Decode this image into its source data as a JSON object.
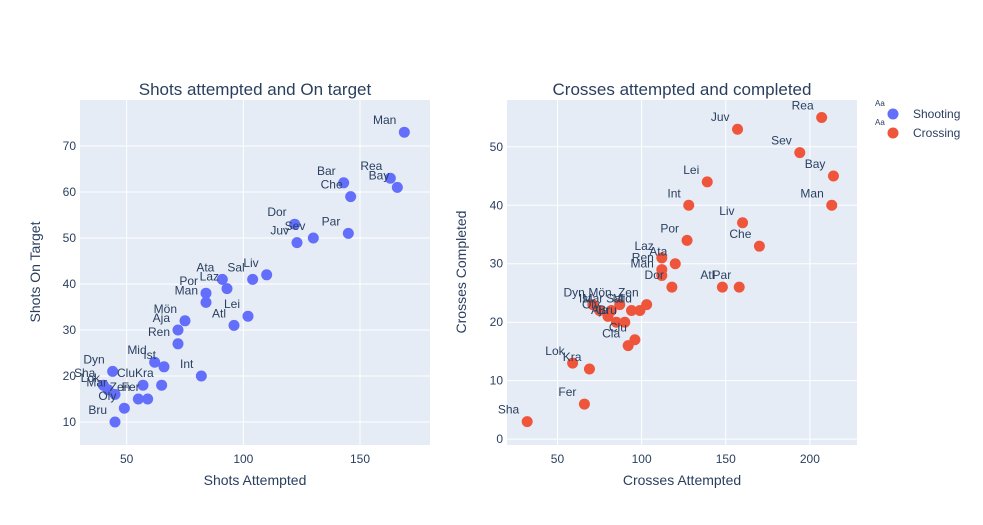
{
  "chart_data": [
    {
      "type": "scatter",
      "title": "Shots attempted and On target",
      "xlabel": "Shots Attempted",
      "ylabel": "Shots On Target",
      "xlim": [
        30,
        180
      ],
      "ylim": [
        5,
        80
      ],
      "xticks": [
        50,
        100,
        150
      ],
      "yticks": [
        10,
        20,
        30,
        40,
        50,
        60,
        70
      ],
      "grid": true,
      "series": [
        {
          "name": "Shooting",
          "color": "#636efa",
          "points": [
            {
              "label": "Man",
              "x": 169,
              "y": 73
            },
            {
              "label": "Bar",
              "x": 143,
              "y": 62
            },
            {
              "label": "Rea",
              "x": 163,
              "y": 63
            },
            {
              "label": "Che",
              "x": 146,
              "y": 59
            },
            {
              "label": "Bay",
              "x": 166,
              "y": 61
            },
            {
              "label": "Dor",
              "x": 122,
              "y": 53
            },
            {
              "label": "Sev",
              "x": 130,
              "y": 50
            },
            {
              "label": "Juv",
              "x": 123,
              "y": 49
            },
            {
              "label": "Par",
              "x": 145,
              "y": 51
            },
            {
              "label": "Liv",
              "x": 110,
              "y": 42
            },
            {
              "label": "Sal",
              "x": 104,
              "y": 41
            },
            {
              "label": "Ata",
              "x": 91,
              "y": 41
            },
            {
              "label": "Laz",
              "x": 93,
              "y": 39
            },
            {
              "label": "Por",
              "x": 84,
              "y": 38
            },
            {
              "label": "Man",
              "x": 84,
              "y": 36
            },
            {
              "label": "Lei",
              "x": 102,
              "y": 33
            },
            {
              "label": "Atl",
              "x": 96,
              "y": 31
            },
            {
              "label": "Mön",
              "x": 75,
              "y": 32
            },
            {
              "label": "Aja",
              "x": 72,
              "y": 30
            },
            {
              "label": "Ren",
              "x": 72,
              "y": 27
            },
            {
              "label": "Mid",
              "x": 62,
              "y": 23
            },
            {
              "label": "Ist",
              "x": 66,
              "y": 22
            },
            {
              "label": "Int",
              "x": 82,
              "y": 20
            },
            {
              "label": "Dyn",
              "x": 44,
              "y": 21
            },
            {
              "label": "Sha",
              "x": 40,
              "y": 18
            },
            {
              "label": "Clu",
              "x": 57,
              "y": 18
            },
            {
              "label": "Kra",
              "x": 65,
              "y": 18
            },
            {
              "label": "Lok",
              "x": 42,
              "y": 17
            },
            {
              "label": "Zen",
              "x": 55,
              "y": 15
            },
            {
              "label": "Fer",
              "x": 59,
              "y": 15
            },
            {
              "label": "Mar",
              "x": 45,
              "y": 16
            },
            {
              "label": "Oly",
              "x": 49,
              "y": 13
            },
            {
              "label": "Bru",
              "x": 45,
              "y": 10
            }
          ]
        }
      ]
    },
    {
      "type": "scatter",
      "title": "Crosses attempted and completed",
      "xlabel": "Crosses Attempted",
      "ylabel": "Crosses Completed",
      "xlim": [
        20,
        228
      ],
      "ylim": [
        -1,
        58
      ],
      "xticks": [
        50,
        100,
        150,
        200
      ],
      "yticks": [
        0,
        10,
        20,
        30,
        40,
        50
      ],
      "grid": true,
      "series": [
        {
          "name": "Crossing",
          "color": "#ef553b",
          "points": [
            {
              "label": "Rea",
              "x": 207,
              "y": 55
            },
            {
              "label": "Juv",
              "x": 157,
              "y": 53
            },
            {
              "label": "Sev",
              "x": 194,
              "y": 49
            },
            {
              "label": "Bay",
              "x": 214,
              "y": 45
            },
            {
              "label": "Lei",
              "x": 139,
              "y": 44
            },
            {
              "label": "Int",
              "x": 128,
              "y": 40
            },
            {
              "label": "Man",
              "x": 213,
              "y": 40
            },
            {
              "label": "Liv",
              "x": 160,
              "y": 37
            },
            {
              "label": "Che",
              "x": 170,
              "y": 33
            },
            {
              "label": "Por",
              "x": 127,
              "y": 34
            },
            {
              "label": "Laz",
              "x": 112,
              "y": 31
            },
            {
              "label": "Ata",
              "x": 120,
              "y": 30
            },
            {
              "label": "Ren",
              "x": 112,
              "y": 29
            },
            {
              "label": "Man",
              "x": 112,
              "y": 28
            },
            {
              "label": "Dor",
              "x": 118,
              "y": 26
            },
            {
              "label": "Atl",
              "x": 148,
              "y": 26
            },
            {
              "label": "Par",
              "x": 158,
              "y": 26
            },
            {
              "label": "Dyn",
              "x": 71,
              "y": 23
            },
            {
              "label": "Mön",
              "x": 87,
              "y": 23
            },
            {
              "label": "Zen",
              "x": 103,
              "y": 23
            },
            {
              "label": "Mar",
              "x": 82,
              "y": 22
            },
            {
              "label": "Mid",
              "x": 99,
              "y": 22
            },
            {
              "label": "Sal",
              "x": 94,
              "y": 22
            },
            {
              "label": "Ist",
              "x": 75,
              "y": 22
            },
            {
              "label": "Oly",
              "x": 80,
              "y": 21
            },
            {
              "label": "Aja",
              "x": 85,
              "y": 20
            },
            {
              "label": "Bru",
              "x": 90,
              "y": 20
            },
            {
              "label": "Clu",
              "x": 96,
              "y": 17
            },
            {
              "label": "Cla",
              "x": 92,
              "y": 16
            },
            {
              "label": "Lok",
              "x": 59,
              "y": 13
            },
            {
              "label": "Kra",
              "x": 69,
              "y": 12
            },
            {
              "label": "Fer",
              "x": 66,
              "y": 6
            },
            {
              "label": "Sha",
              "x": 32,
              "y": 3
            }
          ]
        }
      ]
    }
  ],
  "legend": {
    "placement": "top-right",
    "items": [
      {
        "label": "Shooting",
        "color": "#636efa",
        "marker": "Aa"
      },
      {
        "label": "Crossing",
        "color": "#ef553b",
        "marker": "Aa"
      }
    ]
  },
  "style": {
    "plot_bg": "#e5ecf6",
    "grid_color": "#ffffff",
    "text_color": "#2a3f5f"
  }
}
